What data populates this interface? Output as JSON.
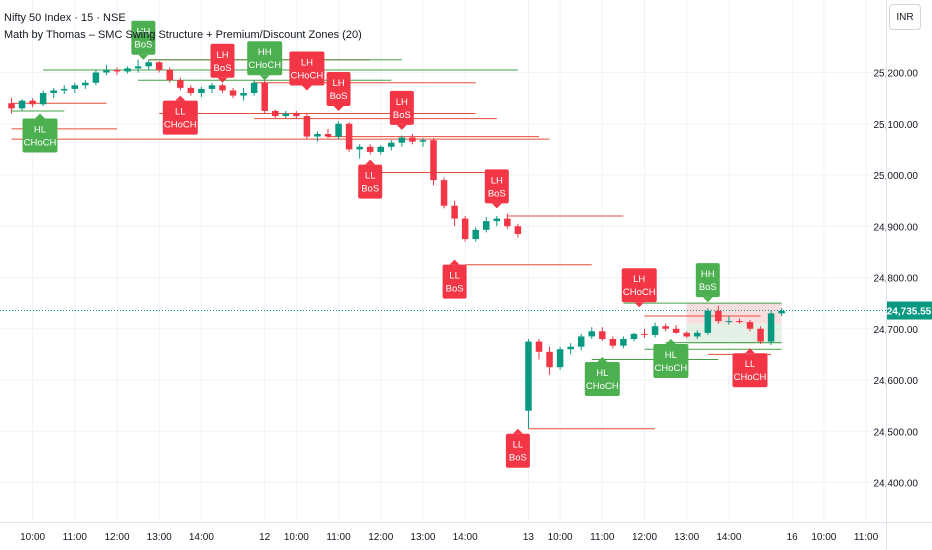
{
  "header": {
    "title": "Nifty 50 Index · 15 · NSE",
    "indicator": "Math by Thomas – SMC Swing Structure + Premium/Discount Zones (20)",
    "currency": "INR"
  },
  "chart_data": {
    "type": "candlestick",
    "title": "Nifty 50 Index · 15 · NSE",
    "ylim": [
      24350,
      25300
    ],
    "y_ticks": [
      25200,
      25100,
      25000,
      24900,
      24800,
      24700,
      24600,
      24500,
      24400
    ],
    "y_tick_labels": [
      "25,200.00",
      "25,100.00",
      "25,000.00",
      "24,900.00",
      "24,800.00",
      "24,700.00",
      "24,600.00",
      "24,500.00",
      "24,400.00"
    ],
    "x_ticks": [
      {
        "i": 2,
        "label": "10:00"
      },
      {
        "i": 6,
        "label": "11:00"
      },
      {
        "i": 10,
        "label": "12:00"
      },
      {
        "i": 14,
        "label": "13:00"
      },
      {
        "i": 18,
        "label": "14:00"
      },
      {
        "i": 24,
        "label": "12"
      },
      {
        "i": 27,
        "label": "10:00"
      },
      {
        "i": 31,
        "label": "11:00"
      },
      {
        "i": 35,
        "label": "12:00"
      },
      {
        "i": 39,
        "label": "13:00"
      },
      {
        "i": 43,
        "label": "14:00"
      },
      {
        "i": 49,
        "label": "13"
      },
      {
        "i": 52,
        "label": "10:00"
      },
      {
        "i": 56,
        "label": "11:00"
      },
      {
        "i": 60,
        "label": "12:00"
      },
      {
        "i": 64,
        "label": "13:00"
      },
      {
        "i": 68,
        "label": "14:00"
      },
      {
        "i": 74,
        "label": "16"
      },
      {
        "i": 77,
        "label": "10:00"
      },
      {
        "i": 81,
        "label": "11:00"
      }
    ],
    "candles": [
      [
        25140,
        25150,
        25120,
        25130
      ],
      [
        25130,
        25148,
        25125,
        25145
      ],
      [
        25145,
        25150,
        25132,
        25138
      ],
      [
        25138,
        25165,
        25135,
        25160
      ],
      [
        25160,
        25170,
        25150,
        25165
      ],
      [
        25165,
        25175,
        25158,
        25168
      ],
      [
        25168,
        25180,
        25160,
        25175
      ],
      [
        25175,
        25185,
        25168,
        25180
      ],
      [
        25180,
        25205,
        25175,
        25200
      ],
      [
        25200,
        25215,
        25195,
        25205
      ],
      [
        25205,
        25210,
        25195,
        25202
      ],
      [
        25202,
        25212,
        25198,
        25208
      ],
      [
        25208,
        25225,
        25200,
        25212
      ],
      [
        25212,
        25225,
        25205,
        25220
      ],
      [
        25220,
        25222,
        25200,
        25205
      ],
      [
        25205,
        25210,
        25180,
        25185
      ],
      [
        25185,
        25190,
        25165,
        25170
      ],
      [
        25170,
        25175,
        25155,
        25160
      ],
      [
        25160,
        25172,
        25152,
        25168
      ],
      [
        25168,
        25180,
        25160,
        25175
      ],
      [
        25175,
        25178,
        25160,
        25165
      ],
      [
        25165,
        25170,
        25150,
        25155
      ],
      [
        25155,
        25170,
        25145,
        25160
      ],
      [
        25160,
        25185,
        25155,
        25180
      ],
      [
        25180,
        25185,
        25120,
        25125
      ],
      [
        25125,
        25128,
        25110,
        25115
      ],
      [
        25115,
        25125,
        25110,
        25120
      ],
      [
        25120,
        25125,
        25110,
        25115
      ],
      [
        25115,
        25120,
        25070,
        25075
      ],
      [
        25075,
        25085,
        25065,
        25080
      ],
      [
        25080,
        25090,
        25072,
        25075
      ],
      [
        25075,
        25105,
        25070,
        25100
      ],
      [
        25100,
        25103,
        25045,
        25050
      ],
      [
        25050,
        25060,
        25032,
        25055
      ],
      [
        25055,
        25060,
        25040,
        25045
      ],
      [
        25045,
        25058,
        25040,
        25055
      ],
      [
        25055,
        25068,
        25048,
        25063
      ],
      [
        25063,
        25077,
        25055,
        25073
      ],
      [
        25073,
        25080,
        25060,
        25065
      ],
      [
        25065,
        25072,
        25055,
        25068
      ],
      [
        25068,
        25072,
        24980,
        24990
      ],
      [
        24990,
        24995,
        24935,
        24940
      ],
      [
        24940,
        24950,
        24900,
        24915
      ],
      [
        24915,
        24920,
        24870,
        24875
      ],
      [
        24875,
        24898,
        24870,
        24893
      ],
      [
        24893,
        24918,
        24888,
        24910
      ],
      [
        24910,
        24920,
        24900,
        24915
      ],
      [
        24915,
        24925,
        24895,
        24900
      ],
      [
        24900,
        24905,
        24878,
        24885
      ],
      [
        24540,
        24680,
        24505,
        24675
      ],
      [
        24675,
        24680,
        24640,
        24655
      ],
      [
        24655,
        24665,
        24610,
        24625
      ],
      [
        24625,
        24665,
        24620,
        24660
      ],
      [
        24660,
        24672,
        24650,
        24665
      ],
      [
        24665,
        24690,
        24658,
        24685
      ],
      [
        24685,
        24703,
        24680,
        24695
      ],
      [
        24695,
        24703,
        24676,
        24680
      ],
      [
        24680,
        24685,
        24662,
        24667
      ],
      [
        24667,
        24685,
        24662,
        24680
      ],
      [
        24680,
        24692,
        24675,
        24690
      ],
      [
        24690,
        24700,
        24682,
        24688
      ],
      [
        24688,
        24712,
        24683,
        24705
      ],
      [
        24705,
        24710,
        24695,
        24700
      ],
      [
        24700,
        24707,
        24690,
        24692
      ],
      [
        24692,
        24695,
        24682,
        24685
      ],
      [
        24685,
        24697,
        24680,
        24692
      ],
      [
        24692,
        24740,
        24688,
        24735
      ],
      [
        24735,
        24745,
        24710,
        24715
      ],
      [
        24715,
        24725,
        24708,
        24715
      ],
      [
        24715,
        24720,
        24710,
        24713
      ],
      [
        24713,
        24717,
        24695,
        24700
      ],
      [
        24700,
        24705,
        24670,
        24675
      ],
      [
        24675,
        24735,
        24668,
        24730
      ],
      [
        24730,
        24740,
        24725,
        24735
      ]
    ],
    "last_price": 24735.55,
    "last_price_label": "24,735.55",
    "zones": [
      {
        "name": "premium-zone",
        "from": 64,
        "to": 73,
        "top": 24750,
        "bottom": 24710,
        "color": "#f5d3d3"
      },
      {
        "name": "equilibrium-zone",
        "from": 64,
        "to": 73,
        "top": 24710,
        "bottom": 24670,
        "color": "#dcebdd"
      }
    ],
    "levels": [
      {
        "price": 25225,
        "from": 13,
        "to": 34,
        "color": "#e74c3c"
      },
      {
        "price": 25225,
        "from": 13,
        "to": 37,
        "color": "#43a047"
      },
      {
        "price": 25205,
        "from": 3,
        "to": 48,
        "color": "#43a047"
      },
      {
        "price": 25185,
        "from": 12,
        "to": 36,
        "color": "#43a047"
      },
      {
        "price": 25180,
        "from": 23,
        "to": 44,
        "color": "#e74c3c"
      },
      {
        "price": 25140,
        "from": 0,
        "to": 9,
        "color": "#e74c3c"
      },
      {
        "price": 25125,
        "from": 0,
        "to": 5,
        "color": "#43a047"
      },
      {
        "price": 25120,
        "from": 14,
        "to": 44,
        "color": "#e74c3c"
      },
      {
        "price": 25110,
        "from": 23,
        "to": 46,
        "color": "#e74c3c"
      },
      {
        "price": 25090,
        "from": 0,
        "to": 10,
        "color": "#e74c3c"
      },
      {
        "price": 25075,
        "from": 30,
        "to": 50,
        "color": "#e74c3c"
      },
      {
        "price": 25070,
        "from": 0,
        "to": 51,
        "color": "#e74c3c"
      },
      {
        "price": 25005,
        "from": 34,
        "to": 46,
        "color": "#e74c3c"
      },
      {
        "price": 24920,
        "from": 47,
        "to": 58,
        "color": "#e74c3c"
      },
      {
        "price": 24825,
        "from": 43,
        "to": 55,
        "color": "#e74c3c"
      },
      {
        "price": 24750,
        "from": 58,
        "to": 73,
        "color": "#43a047"
      },
      {
        "price": 24725,
        "from": 60,
        "to": 71,
        "color": "#e74c3c"
      },
      {
        "price": 24673,
        "from": 62,
        "to": 73,
        "color": "#43a047"
      },
      {
        "price": 24660,
        "from": 60,
        "to": 73,
        "color": "#43a047"
      },
      {
        "price": 24650,
        "from": 66,
        "to": 72,
        "color": "#e74c3c"
      },
      {
        "price": 24640,
        "from": 55,
        "to": 67,
        "color": "#43a047"
      },
      {
        "price": 24505,
        "from": 49,
        "to": 61,
        "color": "#e74c3c"
      }
    ],
    "labels": [
      {
        "i": 12.5,
        "price": 25225,
        "pos": "above",
        "line1": "HH",
        "line2": "BoS",
        "color": "#4caf50"
      },
      {
        "i": 2.7,
        "price": 25120,
        "pos": "below",
        "line1": "HL",
        "line2": "CHoCH",
        "color": "#4caf50"
      },
      {
        "i": 16,
        "price": 25155,
        "pos": "below",
        "line1": "LL",
        "line2": "CHoCH",
        "color": "#f23645"
      },
      {
        "i": 20,
        "price": 25180,
        "pos": "above",
        "line1": "LH",
        "line2": "BoS",
        "color": "#f23645"
      },
      {
        "i": 24,
        "price": 25185,
        "pos": "above",
        "line1": "HH",
        "line2": "CHoCH",
        "color": "#4caf50"
      },
      {
        "i": 28,
        "price": 25165,
        "pos": "above",
        "line1": "LH",
        "line2": "CHoCH",
        "color": "#f23645"
      },
      {
        "i": 31,
        "price": 25125,
        "pos": "above",
        "line1": "LH",
        "line2": "BoS",
        "color": "#f23645"
      },
      {
        "i": 34,
        "price": 25030,
        "pos": "below",
        "line1": "LL",
        "line2": "BoS",
        "color": "#f23645"
      },
      {
        "i": 37,
        "price": 25088,
        "pos": "above",
        "line1": "LH",
        "line2": "BoS",
        "color": "#f23645"
      },
      {
        "i": 42,
        "price": 24835,
        "pos": "below",
        "line1": "LL",
        "line2": "BoS",
        "color": "#f23645"
      },
      {
        "i": 46,
        "price": 24935,
        "pos": "above",
        "line1": "LH",
        "line2": "BoS",
        "color": "#f23645"
      },
      {
        "i": 48,
        "price": 24505,
        "pos": "below",
        "line1": "LL",
        "line2": "BoS",
        "color": "#f23645"
      },
      {
        "i": 56,
        "price": 24645,
        "pos": "below",
        "line1": "HL",
        "line2": "CHoCH",
        "color": "#4caf50"
      },
      {
        "i": 59.5,
        "price": 24742,
        "pos": "above",
        "line1": "LH",
        "line2": "CHoCH",
        "color": "#f23645"
      },
      {
        "i": 62.5,
        "price": 24680,
        "pos": "below",
        "line1": "HL",
        "line2": "CHoCH",
        "color": "#4caf50"
      },
      {
        "i": 66,
        "price": 24752,
        "pos": "above",
        "line1": "HH",
        "line2": "BoS",
        "color": "#4caf50"
      },
      {
        "i": 70,
        "price": 24662,
        "pos": "below",
        "line1": "LL",
        "line2": "CHoCH",
        "color": "#f23645"
      }
    ],
    "colors": {
      "up": "#089981",
      "down": "#f23645",
      "grid": "#f0f3fa",
      "text": "#131722",
      "price_tag": "#089981"
    },
    "grid": true
  }
}
